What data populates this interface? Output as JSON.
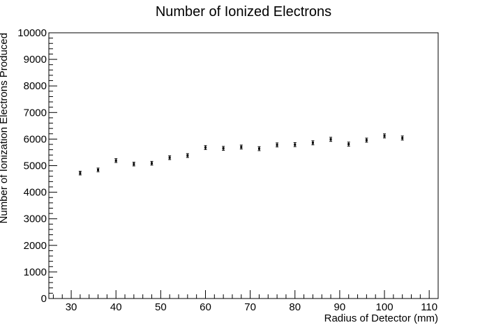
{
  "chart_data": {
    "type": "scatter",
    "title": "Number of Ionized Electrons",
    "xlabel": "Radius of Detector (mm)",
    "ylabel": "Number of Ionization Electrons Produced",
    "xlim": [
      25,
      112
    ],
    "ylim": [
      0,
      10000
    ],
    "xticks": [
      "30",
      "40",
      "50",
      "60",
      "70",
      "80",
      "90",
      "100",
      "110"
    ],
    "yticks": [
      "0",
      "1000",
      "2000",
      "3000",
      "4000",
      "5000",
      "6000",
      "7000",
      "8000",
      "9000",
      "10000"
    ],
    "grid": false,
    "legend": "none",
    "marker_color": "#000000",
    "series": [
      {
        "x": [
          32,
          36,
          40,
          44,
          48,
          52,
          56,
          60,
          64,
          68,
          72,
          76,
          80,
          84,
          88,
          92,
          96,
          100,
          104
        ],
        "y": [
          4720,
          4840,
          5190,
          5060,
          5090,
          5300,
          5380,
          5680,
          5650,
          5700,
          5640,
          5780,
          5790,
          5860,
          5990,
          5810,
          5960,
          6120,
          6040
        ],
        "yerr": [
          70,
          70,
          72,
          71,
          71,
          73,
          73,
          75,
          75,
          75,
          75,
          76,
          76,
          77,
          77,
          76,
          77,
          78,
          78
        ]
      }
    ]
  }
}
